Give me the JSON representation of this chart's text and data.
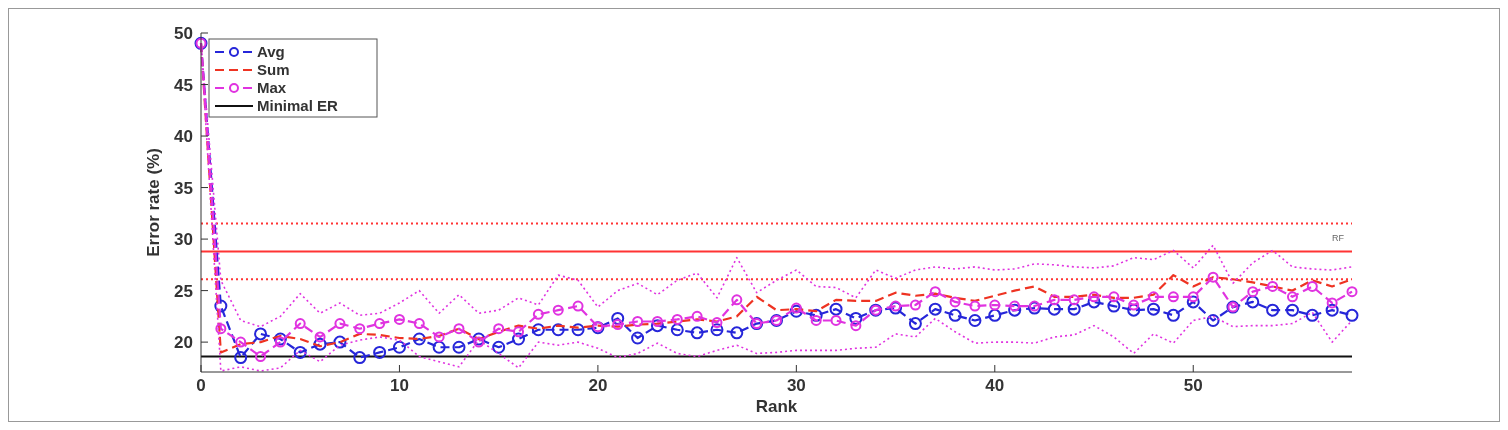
{
  "chart_data": {
    "type": "line",
    "xlabel": "Rank",
    "ylabel": "Error rate (%)",
    "x": [
      0,
      1,
      2,
      3,
      4,
      5,
      6,
      7,
      8,
      9,
      10,
      11,
      12,
      13,
      14,
      15,
      16,
      17,
      18,
      19,
      20,
      21,
      22,
      23,
      24,
      25,
      26,
      27,
      28,
      29,
      30,
      31,
      32,
      33,
      34,
      35,
      36,
      37,
      38,
      39,
      40,
      41,
      42,
      43,
      44,
      45,
      46,
      47,
      48,
      49,
      50,
      51,
      52,
      53,
      54,
      55,
      56,
      57,
      58
    ],
    "xlim": [
      0,
      58
    ],
    "xticks": [
      0,
      10,
      20,
      30,
      40,
      50
    ],
    "ylim": [
      17.1,
      50
    ],
    "yticks": [
      20,
      25,
      30,
      35,
      40,
      45,
      50
    ],
    "legend": "top left",
    "grid": false,
    "series": [
      {
        "name": "Avg",
        "color": "#2626d9",
        "marker": "circle",
        "line_style": "dashed",
        "values": [
          49,
          23.5,
          18.5,
          20.8,
          20.3,
          19.0,
          19.8,
          20.0,
          18.5,
          19.0,
          19.5,
          20.3,
          19.5,
          19.5,
          20.3,
          19.5,
          20.3,
          21.2,
          21.2,
          21.2,
          21.4,
          22.3,
          20.4,
          21.6,
          21.2,
          20.9,
          21.2,
          20.9,
          21.8,
          22.1,
          23.0,
          22.6,
          23.2,
          22.3,
          23.1,
          23.3,
          21.8,
          23.2,
          22.6,
          22.1,
          22.6,
          23.1,
          23.3,
          23.2,
          23.2,
          23.9,
          23.5,
          23.1,
          23.2,
          22.6,
          23.9,
          22.1,
          23.4,
          23.9,
          23.1,
          23.1,
          22.6,
          23.1,
          22.6
        ]
      },
      {
        "name": "Sum",
        "color": "#ee3322",
        "marker": "none",
        "line_style": "dashed",
        "values": [
          49,
          19.0,
          19.8,
          20.0,
          20.6,
          20.3,
          19.6,
          20.0,
          20.8,
          20.7,
          20.4,
          20.3,
          20.6,
          21.3,
          20.3,
          21.0,
          21.6,
          21.3,
          21.6,
          21.4,
          21.6,
          21.5,
          21.7,
          21.8,
          22.0,
          22.2,
          22.0,
          22.5,
          24.4,
          23.1,
          23.2,
          23.0,
          24.1,
          24.0,
          24.0,
          24.8,
          24.5,
          24.7,
          24.3,
          24.0,
          24.5,
          25.0,
          25.4,
          24.4,
          24.4,
          24.6,
          24.3,
          24.3,
          24.6,
          26.5,
          25.4,
          26.3,
          26.1,
          25.8,
          25.4,
          25.0,
          26.0,
          25.4,
          26.1
        ]
      },
      {
        "name": "Max",
        "color": "#e033e0",
        "marker": "circle",
        "line_style": "dashed",
        "values": [
          49,
          21.3,
          20.0,
          18.6,
          20.0,
          21.8,
          20.5,
          21.8,
          21.3,
          21.8,
          22.2,
          21.8,
          20.5,
          21.3,
          20.0,
          21.3,
          21.0,
          22.7,
          23.1,
          23.5,
          21.5,
          21.7,
          22.0,
          22.0,
          22.2,
          22.5,
          21.9,
          24.1,
          21.8,
          22.1,
          23.3,
          22.1,
          22.1,
          21.6,
          23.1,
          23.5,
          23.6,
          24.9,
          23.9,
          23.5,
          23.6,
          23.5,
          23.5,
          24.1,
          24.1,
          24.4,
          24.4,
          23.6,
          24.4,
          24.4,
          24.4,
          26.3,
          23.4,
          24.9,
          25.4,
          24.4,
          25.4,
          23.8,
          24.9
        ]
      },
      {
        "color": "#e033e0",
        "marker": "none",
        "line_style": "dotted",
        "values": [
          49,
          26.0,
          22.1,
          21.5,
          22.5,
          24.7,
          22.8,
          23.8,
          22.6,
          22.8,
          23.8,
          25.0,
          22.8,
          24.6,
          22.8,
          23.1,
          24.3,
          23.6,
          26.5,
          26.0,
          23.4,
          25.0,
          25.7,
          24.6,
          26.0,
          26.7,
          24.3,
          28.2,
          24.8,
          26.0,
          27.0,
          25.4,
          25.3,
          24.3,
          27.0,
          26.2,
          27.0,
          27.3,
          27.1,
          27.3,
          27.0,
          27.1,
          27.6,
          27.5,
          27.3,
          27.2,
          27.4,
          28.2,
          28.0,
          28.9,
          27.2,
          29.4,
          25.7,
          27.7,
          28.9,
          27.3,
          27.1,
          27.0,
          27.3
        ]
      },
      {
        "color": "#e033e0",
        "marker": "none",
        "line_style": "dotted",
        "values": [
          49,
          17.2,
          17.6,
          17.2,
          17.5,
          19.2,
          18.1,
          19.7,
          20.2,
          20.5,
          20.2,
          18.6,
          18.1,
          17.6,
          20.2,
          18.9,
          17.5,
          20.0,
          19.7,
          20.0,
          19.4,
          18.5,
          18.9,
          19.9,
          18.9,
          18.6,
          19.2,
          19.7,
          18.9,
          19.0,
          19.2,
          19.2,
          19.2,
          19.4,
          19.5,
          20.8,
          20.5,
          22.3,
          21.0,
          19.9,
          20.0,
          20.0,
          19.9,
          20.5,
          20.7,
          21.6,
          20.5,
          18.9,
          20.8,
          19.9,
          22.1,
          22.5,
          21.5,
          21.6,
          21.6,
          21.8,
          22.9,
          20.0,
          22.1
        ]
      }
    ],
    "ref_lines": [
      {
        "axis": "y",
        "value": 18.6,
        "label": "Minimal ER",
        "color": "#111111",
        "line_style": "solid"
      },
      {
        "axis": "y",
        "value": 28.8,
        "label": "RF",
        "color": "#ff3333",
        "line_style": "solid"
      },
      {
        "axis": "y",
        "value": 31.5,
        "color": "#ff3333",
        "line_style": "dotted"
      },
      {
        "axis": "y",
        "value": 26.1,
        "color": "#ff3333",
        "line_style": "dotted"
      }
    ]
  }
}
